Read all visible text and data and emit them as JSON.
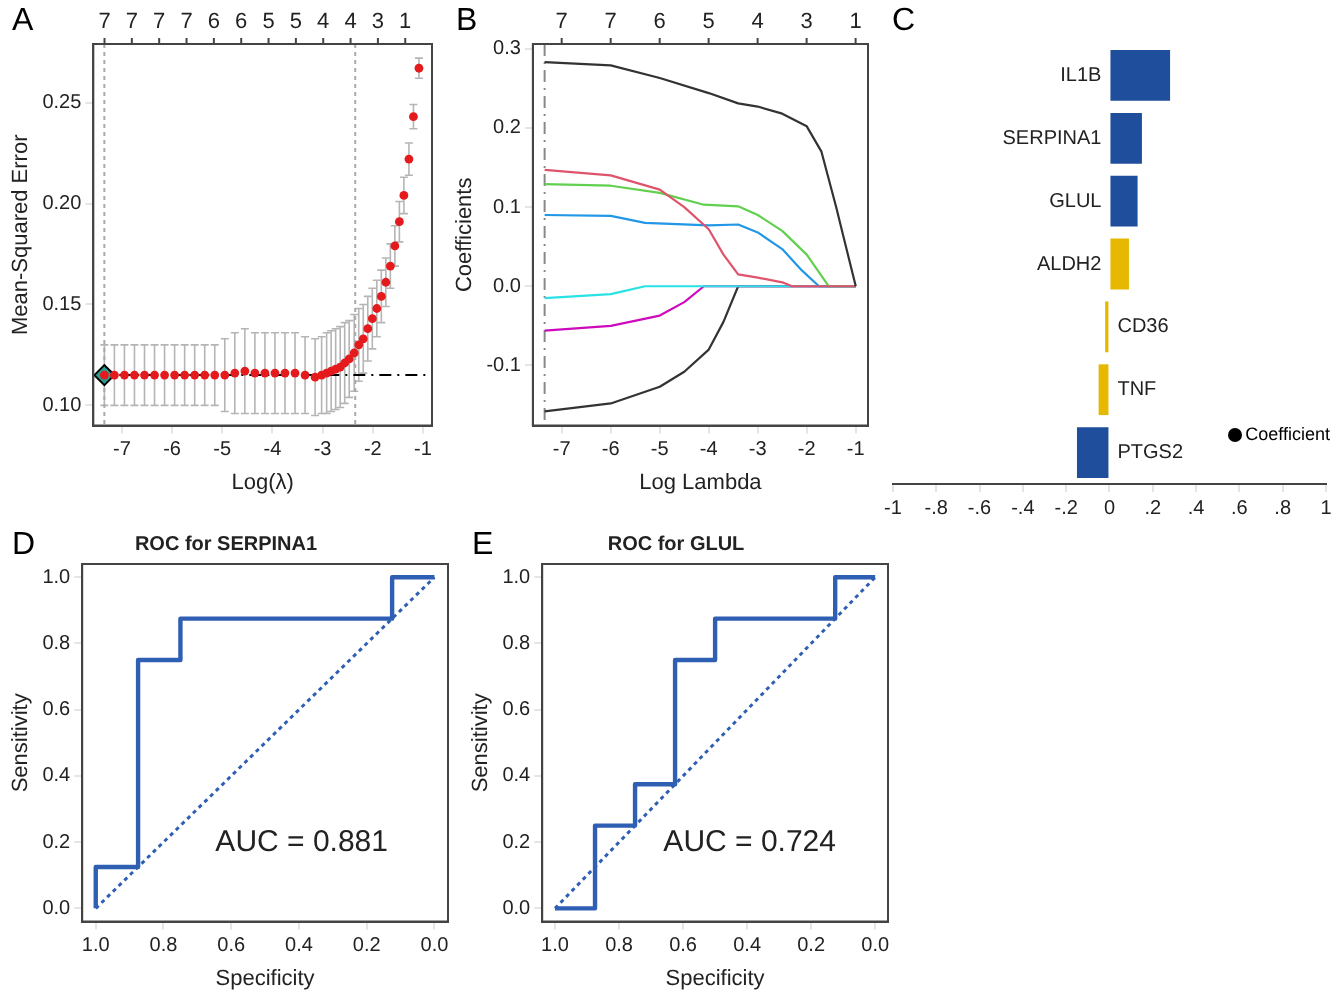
{
  "chart_data": [
    {
      "type": "scatter",
      "annotations": [
        "A",
        "7",
        "7",
        "7",
        "7",
        "6",
        "6",
        "5",
        "5",
        "4",
        "4",
        "3",
        "1"
      ],
      "xlabel": "Log(λ)",
      "ylabel": "Mean-Squared Error",
      "xlim": [
        -7.57,
        -0.82
      ],
      "xticks": [
        -7,
        -6,
        -5,
        -4,
        -3,
        -2,
        -1
      ],
      "ylim": [
        0.09,
        0.279
      ],
      "yticks": [
        {
          "value": 0.1,
          "label": "0.10"
        },
        0.15,
        {
          "value": 0.2,
          "label": "0.20"
        },
        0.25
      ],
      "marker": "circle",
      "ref_lines": [
        {
          "axis": "x",
          "value": -7.35,
          "line_style": "dotted",
          "color": "#aaaaaa"
        },
        {
          "axis": "x",
          "value": -2.35,
          "line_style": "dotted",
          "color": "#aaaaaa"
        },
        {
          "axis": "y",
          "value": 0.115,
          "line_style": "dashed",
          "color": "#000000"
        }
      ],
      "series": [
        {
          "color": "#e41a1c",
          "x": [
            -7.35,
            -7.15,
            -6.95,
            -6.75,
            -6.55,
            -6.35,
            -6.15,
            -5.95,
            -5.75,
            -5.55,
            -5.35,
            -5.15,
            -4.95,
            -4.75,
            -4.55,
            -4.35,
            -4.15,
            -3.95,
            -3.75,
            -3.55,
            -3.35,
            -3.15,
            -3.02,
            -2.92,
            -2.83,
            -2.74,
            -2.65,
            -2.56,
            -2.47,
            -2.37,
            -2.28,
            -2.19,
            -2.1,
            -2.01,
            -1.92,
            -1.83,
            -1.74,
            -1.65,
            -1.56,
            -1.47,
            -1.38,
            -1.28,
            -1.19,
            -1.08
          ],
          "values": [
            0.115,
            0.115,
            0.115,
            0.115,
            0.115,
            0.115,
            0.115,
            0.115,
            0.115,
            0.115,
            0.115,
            0.115,
            0.115,
            0.116,
            0.117,
            0.116,
            0.116,
            0.116,
            0.116,
            0.116,
            0.115,
            0.114,
            0.115,
            0.116,
            0.117,
            0.118,
            0.119,
            0.121,
            0.123,
            0.126,
            0.13,
            0.133,
            0.138,
            0.143,
            0.148,
            0.154,
            0.161,
            0.169,
            0.179,
            0.191,
            0.204,
            0.222,
            0.243,
            0.267
          ],
          "errors": [
            0.015,
            0.015,
            0.015,
            0.015,
            0.015,
            0.015,
            0.015,
            0.015,
            0.015,
            0.015,
            0.015,
            0.015,
            0.018,
            0.02,
            0.021,
            0.02,
            0.02,
            0.02,
            0.02,
            0.02,
            0.019,
            0.019,
            0.019,
            0.02,
            0.02,
            0.02,
            0.02,
            0.02,
            0.019,
            0.019,
            0.018,
            0.017,
            0.016,
            0.015,
            0.014,
            0.013,
            0.012,
            0.011,
            0.01,
            0.01,
            0.009,
            0.008,
            0.006,
            0.005
          ]
        },
        {
          "color": "#2a9d8f",
          "marker": "diamond",
          "x": [
            -7.35
          ],
          "values": [
            0.115
          ]
        }
      ]
    },
    {
      "type": "line",
      "annotations": [
        "B",
        "7",
        "7",
        "6",
        "5",
        "4",
        "3",
        "1"
      ],
      "xlabel": "Log Lambda",
      "ylabel": "Coefficients",
      "xlim": [
        -7.59,
        -0.75
      ],
      "xticks": [
        -7,
        -6,
        -5,
        -4,
        -3,
        -2,
        -1
      ],
      "ylim": [
        -0.176,
        0.306
      ],
      "yticks": [
        -0.1,
        {
          "value": 0,
          "label": "0.0"
        },
        0.1,
        0.2,
        0.3
      ],
      "marker": "none",
      "ref_lines": [
        {
          "axis": "x",
          "value": -7.35,
          "line_style": "dashed",
          "color": "#888888"
        }
      ],
      "series": [
        {
          "color": "#333333",
          "x": [
            -7.35,
            -6,
            -5,
            -4,
            -3.4,
            -3,
            -2.5,
            -2,
            -1.7,
            -1.4,
            -1.2,
            -1
          ],
          "values": [
            0.283,
            0.279,
            0.263,
            0.244,
            0.231,
            0.227,
            0.218,
            0.202,
            0.17,
            0.1,
            0.05,
            0
          ]
        },
        {
          "color": "#df536b",
          "x": [
            -7.35,
            -6,
            -5,
            -4.5,
            -4,
            -3.7,
            -3.4,
            -3,
            -2.5,
            -2.3,
            -1
          ],
          "values": [
            0.147,
            0.14,
            0.122,
            0.1,
            0.072,
            0.04,
            0.015,
            0.011,
            0.005,
            0,
            0
          ]
        },
        {
          "color": "#61d04f",
          "x": [
            -7.35,
            -6,
            -5,
            -4.1,
            -3.4,
            -3,
            -2.5,
            -2,
            -1.55,
            -1
          ],
          "values": [
            0.129,
            0.127,
            0.118,
            0.103,
            0.101,
            0.09,
            0.07,
            0.04,
            0,
            0
          ]
        },
        {
          "color": "#2297e6",
          "x": [
            -7.35,
            -6,
            -5.3,
            -4,
            -3.4,
            -3,
            -2.5,
            -2.1,
            -1.75,
            -1
          ],
          "values": [
            0.09,
            0.089,
            0.08,
            0.077,
            0.078,
            0.068,
            0.047,
            0.02,
            0,
            0
          ]
        },
        {
          "color": "#28e2e5",
          "x": [
            -7.35,
            -6,
            -5.3,
            -1
          ],
          "values": [
            -0.015,
            -0.01,
            0,
            0
          ]
        },
        {
          "color": "#cd0bbc",
          "x": [
            -7.35,
            -6,
            -5,
            -4.5,
            -4.1,
            -1
          ],
          "values": [
            -0.056,
            -0.05,
            -0.037,
            -0.02,
            0,
            0
          ]
        },
        {
          "color": "#333333",
          "x": [
            -7.35,
            -6,
            -5,
            -4.5,
            -4,
            -3.7,
            -3.4,
            -1
          ],
          "values": [
            -0.158,
            -0.148,
            -0.127,
            -0.108,
            -0.08,
            -0.045,
            0,
            0
          ]
        }
      ]
    },
    {
      "type": "bar",
      "orientation": "horizontal",
      "annotations": [
        "C"
      ],
      "categories": [
        "IL1B",
        "SERPINA1",
        "GLUL",
        "ALDH2",
        "CD36",
        "TNF",
        "PTGS2"
      ],
      "xlim": [
        -1,
        1
      ],
      "xticks": [
        -1,
        {
          "value": -0.8,
          "label": "-.8"
        },
        {
          "value": -0.6,
          "label": "-.6"
        },
        {
          "value": -0.4,
          "label": "-.4"
        },
        {
          "value": -0.2,
          "label": "-.2"
        },
        0,
        {
          "value": 0.2,
          "label": ".2"
        },
        {
          "value": 0.4,
          "label": ".4"
        },
        {
          "value": 0.6,
          "label": ".6"
        },
        {
          "value": 0.8,
          "label": ".8"
        },
        1
      ],
      "legend": "right",
      "series": [
        {
          "name": "Coefficient",
          "color": "#000000",
          "colors": [
            "#1f4e9c",
            "#1f4e9c",
            "#1f4e9c",
            "#e6b800",
            "#e6b800",
            "#e6b800",
            "#1f4e9c"
          ],
          "values": [
            0.28,
            0.15,
            0.13,
            0.09,
            -0.02,
            -0.05,
            -0.15
          ]
        }
      ]
    },
    {
      "type": "line",
      "title": "ROC for SERPINA1",
      "annotations": [
        "D",
        "AUC = 0.881"
      ],
      "xlabel": "Specificity",
      "ylabel": "Sensitivity",
      "xlim": [
        1.04,
        -0.04
      ],
      "xticks": [
        {
          "value": 1,
          "label": "1.0"
        },
        0.8,
        0.6,
        0.4,
        0.2,
        {
          "value": 0,
          "label": "0.0"
        }
      ],
      "ylim": [
        -0.04,
        1.04
      ],
      "yticks": [
        {
          "value": 0,
          "label": "0.0"
        },
        0.2,
        0.4,
        0.6,
        0.8,
        {
          "value": 1,
          "label": "1.0"
        }
      ],
      "marker": "none",
      "series": [
        {
          "color": "#2f5fb3",
          "x": [
            1,
            1,
            0.875,
            0.875,
            0.75,
            0.75,
            0.125,
            0.125,
            0
          ],
          "values": [
            0,
            0.125,
            0.125,
            0.75,
            0.75,
            0.875,
            0.875,
            1,
            1
          ]
        },
        {
          "color": "#2f5fb3",
          "line_style": "dotted",
          "x": [
            1,
            0
          ],
          "values": [
            0,
            1
          ]
        }
      ]
    },
    {
      "type": "line",
      "title": "ROC for GLUL",
      "annotations": [
        "E",
        "AUC = 0.724"
      ],
      "xlabel": "Specificity",
      "ylabel": "Sensitivity",
      "xlim": [
        1.04,
        -0.04
      ],
      "xticks": [
        {
          "value": 1,
          "label": "1.0"
        },
        0.8,
        0.6,
        0.4,
        0.2,
        {
          "value": 0,
          "label": "0.0"
        }
      ],
      "ylim": [
        -0.04,
        1.04
      ],
      "yticks": [
        {
          "value": 0,
          "label": "0.0"
        },
        0.2,
        0.4,
        0.6,
        0.8,
        {
          "value": 1,
          "label": "1.0"
        }
      ],
      "marker": "none",
      "series": [
        {
          "color": "#2f5fb3",
          "x": [
            1,
            0.875,
            0.875,
            0.75,
            0.75,
            0.625,
            0.625,
            0.5,
            0.5,
            0.125,
            0.125,
            0
          ],
          "values": [
            0,
            0,
            0.25,
            0.25,
            0.375,
            0.375,
            0.75,
            0.75,
            0.875,
            0.875,
            1,
            1
          ]
        },
        {
          "color": "#2f5fb3",
          "line_style": "dotted",
          "x": [
            1,
            0
          ],
          "values": [
            0,
            1
          ]
        }
      ]
    }
  ]
}
